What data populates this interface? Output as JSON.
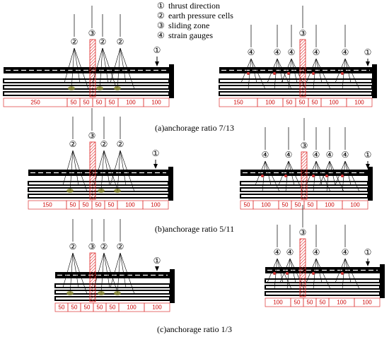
{
  "legend": [
    {
      "symbol": "①",
      "text": "thrust direction"
    },
    {
      "symbol": "②",
      "text": "earth pressure cells"
    },
    {
      "symbol": "③",
      "text": "sliding zone"
    },
    {
      "symbol": "④",
      "text": "strain gauges"
    }
  ],
  "panels": [
    {
      "caption": "(a)anchorage ratio 7/13",
      "diagrams": [
        {
          "markers": [
            "②",
            "③",
            "②",
            "②",
            "①"
          ],
          "dims": [
            250,
            50,
            50,
            50,
            50,
            100,
            100
          ]
        },
        {
          "markers": [
            "④",
            "④",
            "④",
            "③",
            "④",
            "④",
            "①"
          ],
          "dims": [
            150,
            100,
            50,
            50,
            50,
            100,
            100
          ]
        }
      ]
    },
    {
      "caption": "(b)anchorage ratio 5/11",
      "diagrams": [
        {
          "markers": [
            "②",
            "③",
            "②",
            "②",
            "①"
          ],
          "dims": [
            150,
            50,
            50,
            50,
            50,
            100,
            100
          ]
        },
        {
          "markers": [
            "④",
            "④",
            "③",
            "④",
            "④",
            "④",
            "①"
          ],
          "dims": [
            50,
            100,
            50,
            50,
            50,
            100,
            100
          ]
        }
      ]
    },
    {
      "caption": "(c)anchorage ratio 1/3",
      "diagrams": [
        {
          "markers": [
            "②",
            "③",
            "②",
            "②",
            "①"
          ],
          "dims": [
            50,
            50,
            50,
            50,
            50,
            100,
            100
          ]
        },
        {
          "markers": [
            "④",
            "④",
            "③",
            "④",
            "④",
            "①"
          ],
          "dims": [
            100,
            50,
            50,
            50,
            100,
            100
          ]
        }
      ]
    }
  ]
}
